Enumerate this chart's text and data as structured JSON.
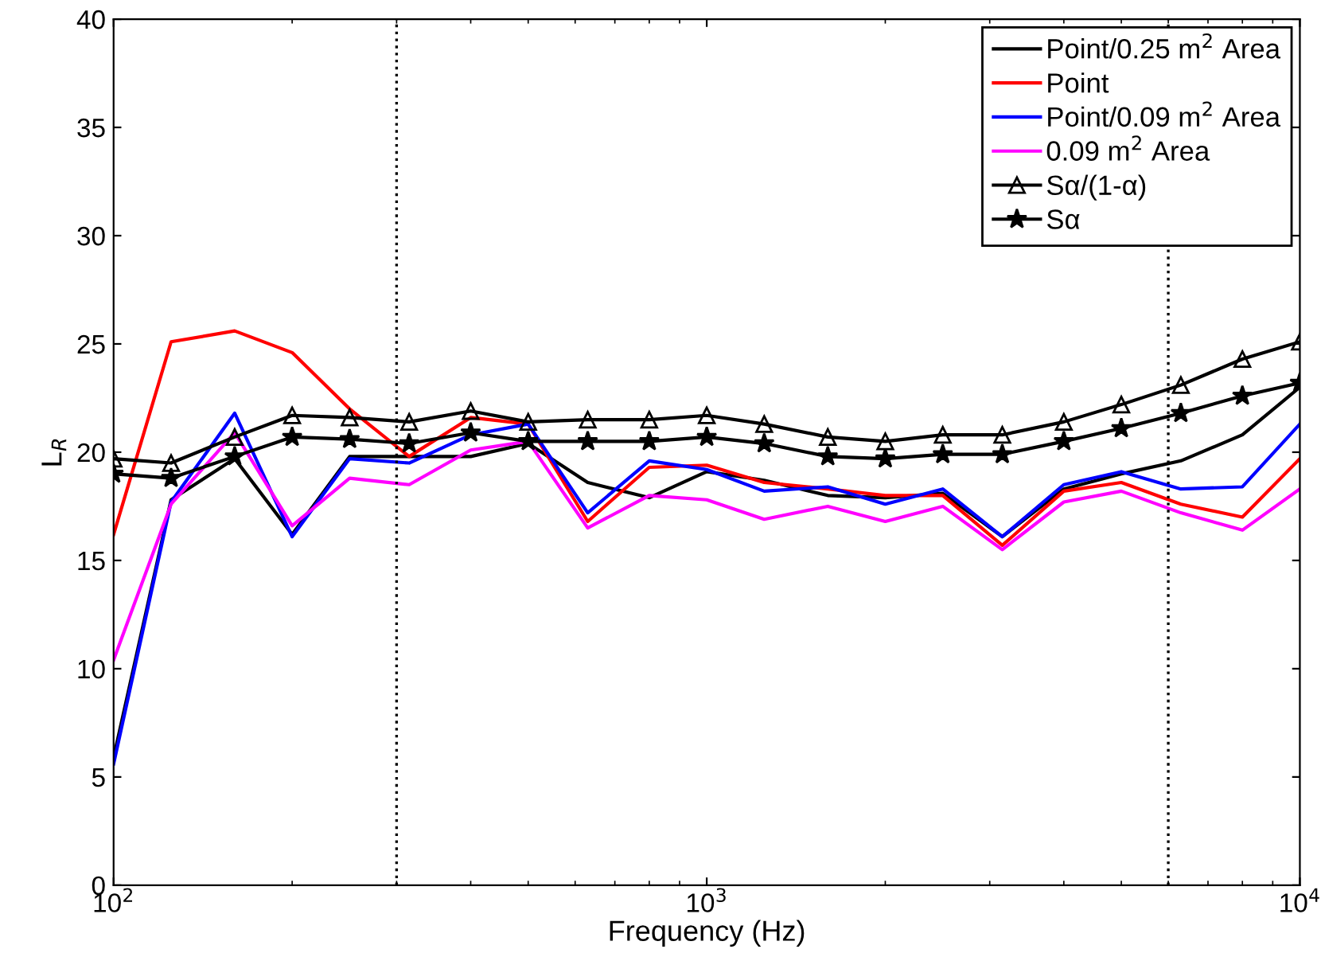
{
  "chart_data": {
    "type": "line",
    "xlabel": "Frequency (Hz)",
    "ylabel": "L$_{R}$",
    "log": "x",
    "x": [
      100,
      125,
      160,
      200,
      250,
      315,
      400,
      500,
      630,
      800,
      1000,
      1250,
      1600,
      2000,
      2500,
      3150,
      4000,
      5000,
      6300,
      8000,
      10000
    ],
    "xlim": [
      100,
      10000
    ],
    "xticks": [
      {
        "value": 100,
        "label": "10$^{2}$"
      },
      {
        "value": 1000,
        "label": "10$^{3}$"
      },
      {
        "value": 10000,
        "label": "10$^{4}$"
      }
    ],
    "ylim": [
      0,
      40
    ],
    "yticks": [
      0,
      5,
      10,
      15,
      20,
      25,
      30,
      35,
      40
    ],
    "grid": false,
    "legend": "top right",
    "line_style": "solid",
    "ref_lines": [
      {
        "axis": "x",
        "value": 300,
        "color": "#000000",
        "line_style": "dotted"
      },
      {
        "axis": "x",
        "value": 6000,
        "color": "#000000",
        "line_style": "dotted"
      }
    ],
    "series": [
      {
        "name": "Point/0.25 m$^{2}$ Area",
        "color": "#000000",
        "marker": "none",
        "values": [
          5.9,
          17.8,
          19.7,
          16.2,
          19.8,
          19.8,
          19.8,
          20.4,
          18.6,
          17.9,
          19.1,
          18.7,
          18.0,
          17.9,
          18.1,
          16.1,
          18.3,
          19.0,
          19.6,
          20.8,
          23.0
        ]
      },
      {
        "name": "Point",
        "color": "#ff0000",
        "marker": "none",
        "values": [
          16.2,
          25.1,
          25.6,
          24.6,
          22.0,
          19.8,
          21.6,
          21.3,
          16.8,
          19.3,
          19.4,
          18.6,
          18.3,
          18.0,
          18.0,
          15.7,
          18.2,
          18.6,
          17.6,
          17.0,
          19.7
        ]
      },
      {
        "name": "Point/0.09 m$^{2}$ Area",
        "color": "#0000ff",
        "marker": "none",
        "values": [
          5.6,
          17.7,
          21.8,
          16.1,
          19.7,
          19.5,
          20.8,
          21.3,
          17.2,
          19.6,
          19.2,
          18.2,
          18.4,
          17.6,
          18.3,
          16.1,
          18.5,
          19.1,
          18.3,
          18.4,
          21.3
        ]
      },
      {
        "name": "0.09 m$^{2}$ Area",
        "color": "#ff00ff",
        "marker": "none",
        "values": [
          10.4,
          17.6,
          20.9,
          16.6,
          18.8,
          18.5,
          20.1,
          20.5,
          16.5,
          18.0,
          17.8,
          16.9,
          17.5,
          16.8,
          17.5,
          15.5,
          17.7,
          18.2,
          17.2,
          16.4,
          18.3
        ]
      },
      {
        "name": "Sα/(1-α)",
        "color": "#000000",
        "marker": "triangle",
        "values": [
          19.7,
          19.5,
          20.7,
          21.7,
          21.6,
          21.4,
          21.9,
          21.4,
          21.5,
          21.5,
          21.7,
          21.3,
          20.7,
          20.5,
          20.8,
          20.8,
          21.4,
          22.2,
          23.1,
          24.3,
          25.1
        ]
      },
      {
        "name": "Sα",
        "color": "#000000",
        "marker": "star",
        "values": [
          19.0,
          18.8,
          19.8,
          20.7,
          20.6,
          20.4,
          20.9,
          20.5,
          20.5,
          20.5,
          20.7,
          20.4,
          19.8,
          19.7,
          19.9,
          19.9,
          20.5,
          21.1,
          21.8,
          22.6,
          23.2
        ]
      }
    ]
  }
}
